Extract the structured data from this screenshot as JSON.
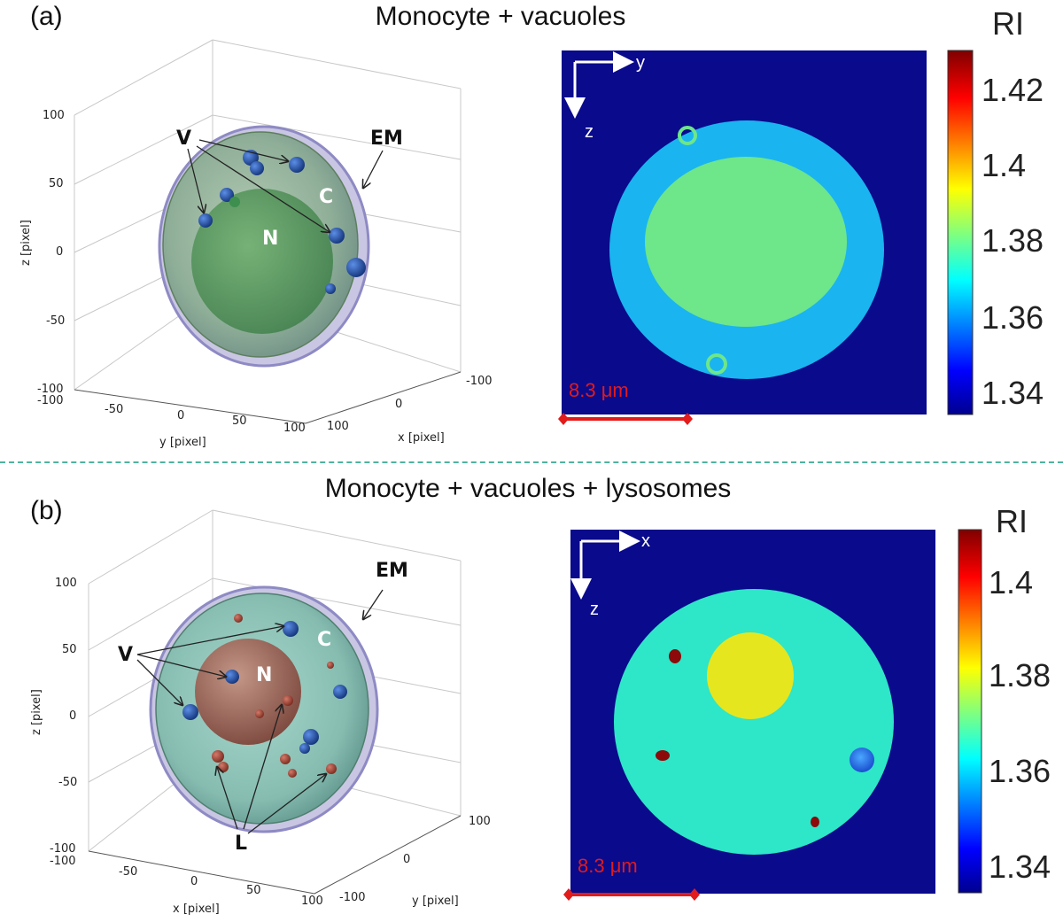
{
  "panel_a": {
    "letter": "(a)",
    "title": "Monocyte + vacuoles",
    "plot3d": {
      "z_ticks": [
        "100",
        "50",
        "0",
        "-50",
        "-100"
      ],
      "z_label": "z [pixel]",
      "y_ticks": [
        "-100",
        "-50",
        "0",
        "50",
        "100"
      ],
      "y_label": "y [pixel]",
      "x_ticks": [
        "-100",
        "0",
        "100"
      ],
      "x_label": "x [pixel]",
      "labels": {
        "V": "V",
        "EM": "EM",
        "C": "C",
        "N": "N"
      }
    },
    "slice": {
      "axis_h": "y",
      "axis_v": "z",
      "scale_bar": "8.3 μm",
      "colorbar_title": "RI",
      "colorbar_ticks": [
        "1.42",
        "1.4",
        "1.38",
        "1.36",
        "1.34"
      ]
    }
  },
  "panel_b": {
    "letter": "(b)",
    "title": "Monocyte + vacuoles + lysosomes",
    "plot3d": {
      "z_ticks": [
        "100",
        "50",
        "0",
        "-50",
        "-100"
      ],
      "z_label": "z [pixel]",
      "x_ticks": [
        "-100",
        "-50",
        "0",
        "50",
        "100"
      ],
      "x_label": "x [pixel]",
      "y_ticks": [
        "100",
        "0",
        "-100"
      ],
      "y_label": "y [pixel]",
      "labels": {
        "V": "V",
        "EM": "EM",
        "C": "C",
        "N": "N",
        "L": "L"
      }
    },
    "slice": {
      "axis_h": "x",
      "axis_v": "z",
      "scale_bar": "8.3 μm",
      "colorbar_title": "RI",
      "colorbar_ticks": [
        "1.4",
        "1.38",
        "1.36",
        "1.34"
      ]
    }
  },
  "colors": {
    "background_slice": "#0a0a8c",
    "cytoplasm_a": "#1ab4f0",
    "nucleus_a": "#6ee68a",
    "cytoplasm_b": "#2ee6c8",
    "nucleus_b": "#e6e61e",
    "lysosome": "#8c0a0a",
    "scale_bar": "#e21b1b"
  }
}
